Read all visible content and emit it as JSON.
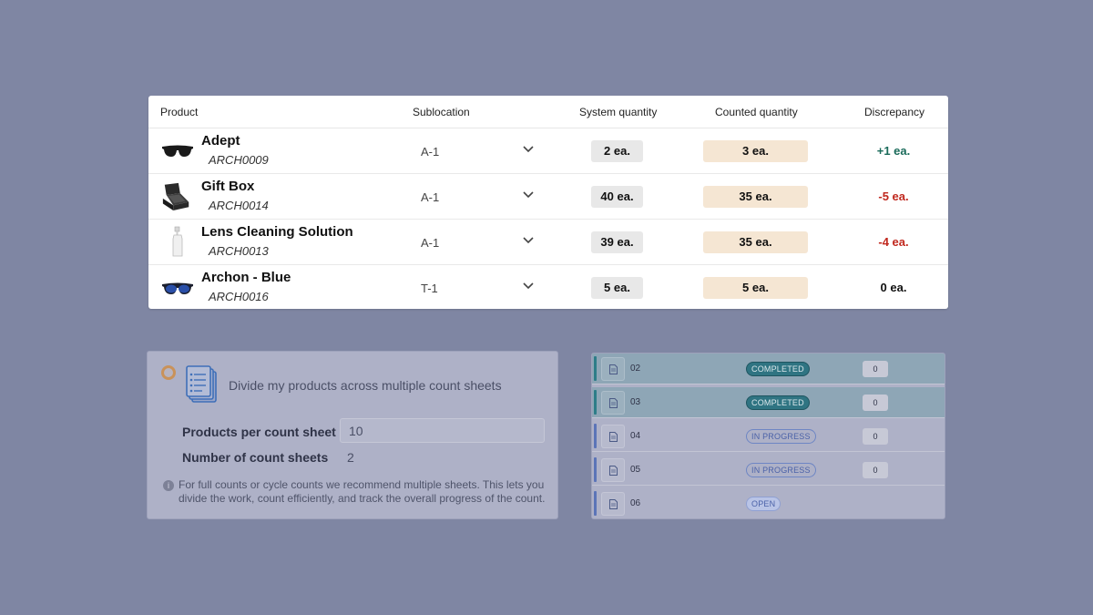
{
  "table": {
    "headers": {
      "product": "Product",
      "sublocation": "Sublocation",
      "system_quantity": "System quantity",
      "counted_quantity": "Counted quantity",
      "discrepancy": "Discrepancy"
    },
    "rows": [
      {
        "name": "Adept",
        "sku": "ARCH0009",
        "icon": "sunglasses-black-icon",
        "sublocation": "A-1",
        "system_qty": "2 ea.",
        "counted_qty": "3 ea.",
        "discrepancy": "+1 ea."
      },
      {
        "name": "Gift Box",
        "sku": "ARCH0014",
        "icon": "gift-box-icon",
        "sublocation": "A-1",
        "system_qty": "40 ea.",
        "counted_qty": "35 ea.",
        "discrepancy": "-5 ea."
      },
      {
        "name": "Lens Cleaning Solution",
        "sku": "ARCH0013",
        "icon": "spray-bottle-icon",
        "sublocation": "A-1",
        "system_qty": "39 ea.",
        "counted_qty": "35 ea.",
        "discrepancy": "-4 ea."
      },
      {
        "name": "Archon - Blue",
        "sku": "ARCH0016",
        "icon": "sunglasses-blue-icon",
        "sublocation": "T-1",
        "system_qty": "5 ea.",
        "counted_qty": "5 ea.",
        "discrepancy": "0 ea."
      }
    ]
  },
  "option": {
    "title": "Divide my products across multiple count sheets",
    "per_sheet_label": "Products per count sheet",
    "per_sheet_value": "10",
    "num_sheets_label": "Number of count sheets",
    "num_sheets_value": "2",
    "info": "For full counts or cycle counts we recommend multiple sheets. This lets you divide the work, count efficiently, and track the overall progress of the count."
  },
  "sheets": [
    {
      "number": "02",
      "status": "COMPLETED",
      "count": "0"
    },
    {
      "number": "03",
      "status": "COMPLETED",
      "count": "0"
    },
    {
      "number": "04",
      "status": "IN PROGRESS",
      "count": "0"
    },
    {
      "number": "05",
      "status": "IN PROGRESS",
      "count": "0"
    },
    {
      "number": "06",
      "status": "OPEN",
      "count": ""
    }
  ],
  "colors": {
    "background": "#7f86a3",
    "discrepancy_positive": "#1a6b5a",
    "discrepancy_negative": "#c0281e",
    "discrepancy_zero": "#111111",
    "counted_fill": "#f5e6d3",
    "completed_badge": "#2f7482"
  }
}
